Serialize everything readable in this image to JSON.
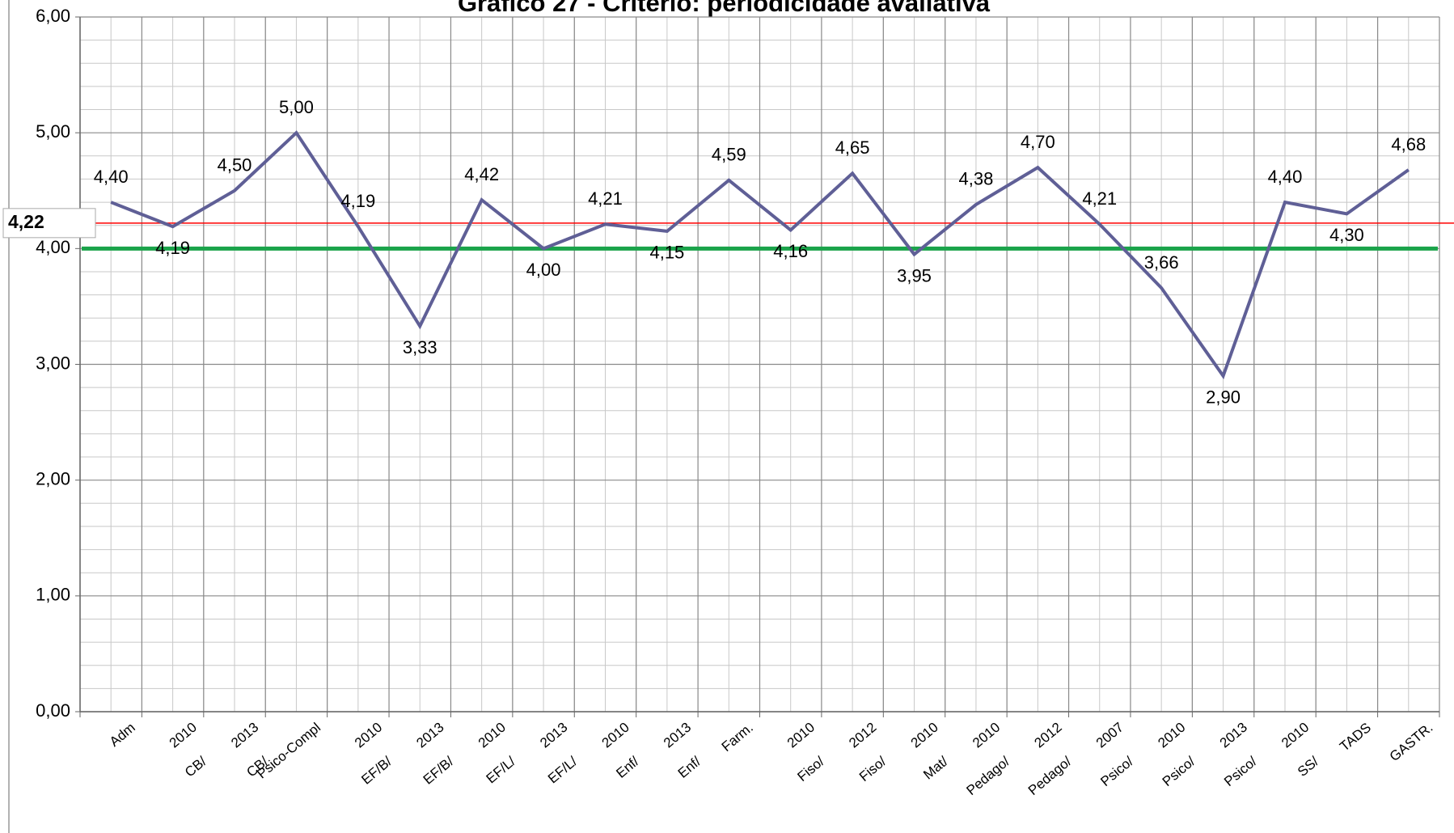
{
  "chart_data": {
    "type": "line",
    "title": "Gráfico 27 - Critério: periodicidade avaliativa",
    "categories": [
      "Adm",
      "CB/ 2010",
      "CB/ 2013",
      "Psico-Compl",
      "EF/B/ 2010",
      "EF/B/ 2013",
      "EF/L/ 2010",
      "EF/L/ 2013",
      "Enf/ 2010",
      "Enf/ 2013",
      "Farm.",
      "Fiso/ 2010",
      "Fiso/ 2012",
      "Mat/ 2010",
      "Pedago/ 2010",
      "Pedago/ 2012",
      "Psico/ 2007",
      "Psico/ 2010",
      "Psico/ 2013",
      "SS/ 2010",
      "TADS",
      "GASTR."
    ],
    "series": [
      {
        "color": "#5f5f96",
        "values": [
          4.4,
          4.19,
          4.5,
          5.0,
          4.19,
          3.33,
          4.42,
          4.0,
          4.21,
          4.15,
          4.59,
          4.16,
          4.65,
          3.95,
          4.38,
          4.7,
          4.21,
          3.66,
          2.9,
          4.4,
          4.3,
          4.68
        ],
        "value_labels": [
          "4,40",
          "4,19",
          "4,50",
          "5,00",
          "4,19",
          "3,33",
          "4,42",
          "4,00",
          "4,21",
          "4,15",
          "4,59",
          "4,16",
          "4,65",
          "3,95",
          "4,38",
          "4,70",
          "4,21",
          "3,66",
          "2,90",
          "4,40",
          "4,30",
          "4,68"
        ]
      }
    ],
    "reference_lines": [
      {
        "value": 4.22,
        "label": "4,22",
        "color": "#ff0000"
      },
      {
        "value": 4,
        "color": "#1aa34a"
      }
    ],
    "ylim": [
      0,
      6
    ],
    "yticks": [
      {
        "value": 0,
        "label": "0,00"
      },
      {
        "value": 1,
        "label": "1,00"
      },
      {
        "value": 2,
        "label": "2,00"
      },
      {
        "value": 3,
        "label": "3,00"
      },
      {
        "value": 4,
        "label": "4,00"
      },
      {
        "value": 5,
        "label": "5,00"
      },
      {
        "value": 6,
        "label": "6,00"
      }
    ],
    "grid": true
  }
}
